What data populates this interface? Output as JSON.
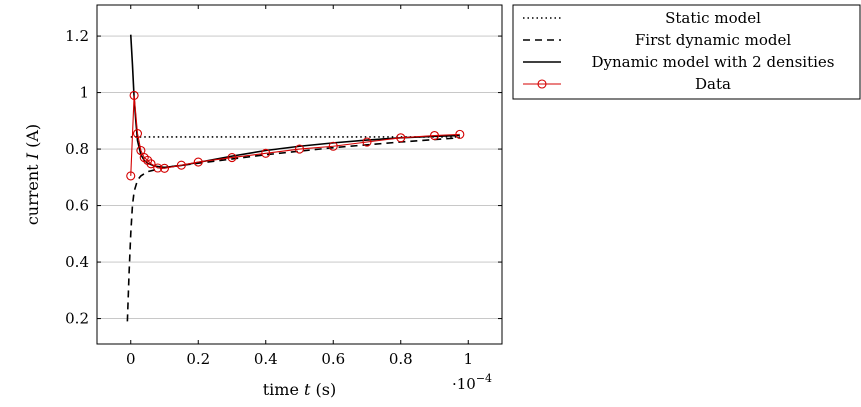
{
  "chart_data": {
    "type": "line",
    "xlabel": "time t (s)",
    "xlabel_parts": {
      "before": "time ",
      "var": "t",
      "after": " (s)"
    },
    "ylabel": "current I (A)",
    "ylabel_parts": {
      "before": "current ",
      "var": "I",
      "after": " (A)"
    },
    "x_scale_note": {
      "base": "·10",
      "exponent": "−4"
    },
    "xlim": [
      -0.1,
      1.1
    ],
    "ylim": [
      0.11,
      1.31
    ],
    "x_ticks": [
      0,
      0.2,
      0.4,
      0.6,
      0.8,
      1
    ],
    "x_tick_labels": [
      "0",
      "0.2",
      "0.4",
      "0.6",
      "0.8",
      "1"
    ],
    "y_ticks": [
      0.2,
      0.4,
      0.6,
      0.8,
      1,
      1.2
    ],
    "y_tick_labels": [
      "0.2",
      "0.4",
      "0.6",
      "0.8",
      "1",
      "1.2"
    ],
    "grid": "horizontal",
    "legend_position": "outside-right",
    "series": [
      {
        "name": "Static model",
        "style": "dotted",
        "color": "#000000",
        "x": [
          0,
          0.975
        ],
        "y": [
          0.843,
          0.843
        ]
      },
      {
        "name": "First dynamic model",
        "style": "dashed",
        "color": "#000000",
        "x": [
          -0.01,
          -0.005,
          0,
          0.005,
          0.01,
          0.02,
          0.03,
          0.05,
          0.1,
          0.2,
          0.4,
          0.6,
          0.8,
          0.975
        ],
        "y": [
          0.19,
          0.36,
          0.5,
          0.6,
          0.65,
          0.69,
          0.705,
          0.72,
          0.735,
          0.75,
          0.78,
          0.805,
          0.825,
          0.84
        ]
      },
      {
        "name": "Dynamic model with 2 densities",
        "style": "solid",
        "color": "#000000",
        "x": [
          0,
          0.005,
          0.01,
          0.015,
          0.02,
          0.03,
          0.04,
          0.05,
          0.07,
          0.1,
          0.15,
          0.2,
          0.3,
          0.4,
          0.5,
          0.6,
          0.7,
          0.8,
          0.9,
          0.975
        ],
        "y": [
          1.205,
          1.1,
          0.98,
          0.9,
          0.83,
          0.78,
          0.76,
          0.75,
          0.74,
          0.735,
          0.742,
          0.753,
          0.775,
          0.795,
          0.81,
          0.822,
          0.832,
          0.84,
          0.845,
          0.848
        ]
      },
      {
        "name": "Data",
        "style": "solid-with-circle-markers",
        "color": "#d40000",
        "x": [
          0,
          0.01,
          0.02,
          0.03,
          0.04,
          0.05,
          0.06,
          0.08,
          0.1,
          0.15,
          0.2,
          0.3,
          0.4,
          0.5,
          0.6,
          0.7,
          0.8,
          0.9,
          0.975
        ],
        "y": [
          0.705,
          0.99,
          0.855,
          0.795,
          0.77,
          0.76,
          0.748,
          0.733,
          0.732,
          0.743,
          0.754,
          0.77,
          0.785,
          0.8,
          0.81,
          0.825,
          0.84,
          0.848,
          0.852
        ]
      }
    ]
  }
}
